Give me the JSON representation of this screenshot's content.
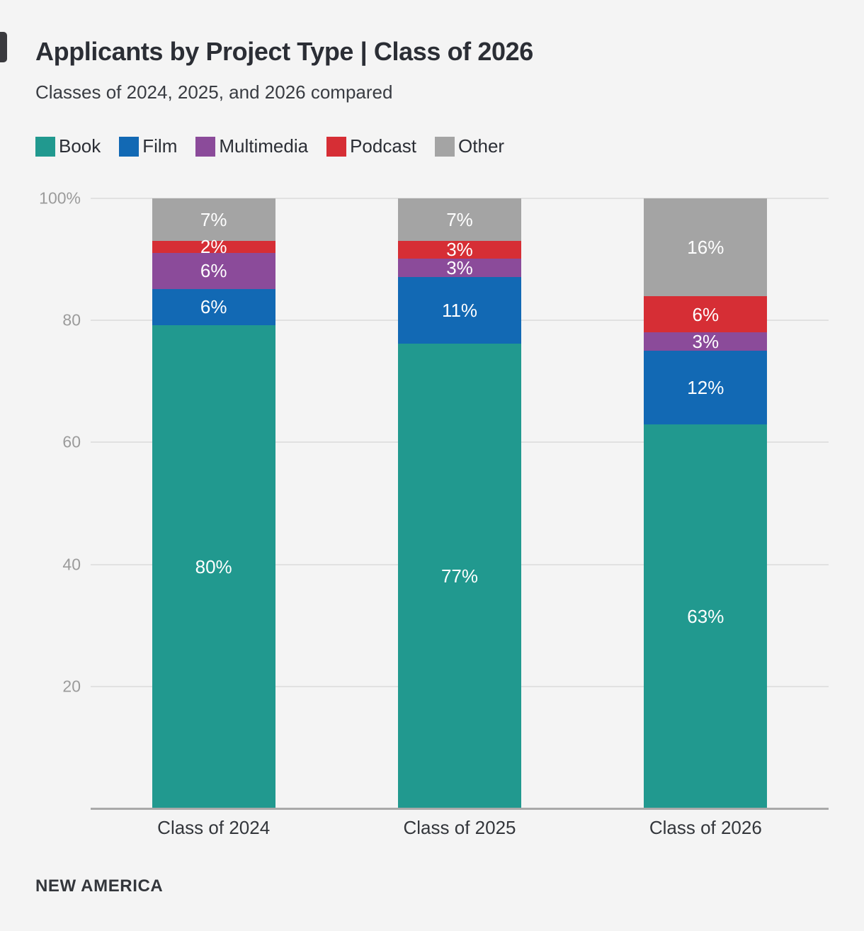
{
  "header": {
    "title": "Applicants by Project Type | Class of 2026",
    "subtitle": "Classes of 2024, 2025, and 2026 compared"
  },
  "footer": {
    "brand": "NEW AMERICA"
  },
  "colors": {
    "background": "#f4f4f4",
    "book": "#21998f",
    "film": "#1269b4",
    "multimedia": "#8b4b9a",
    "podcast": "#d62e35",
    "other": "#a4a4a4",
    "gridline": "#e1e1e1",
    "axis_line": "#a9a9a9",
    "tick_label": "#9b9b9b",
    "segment_label_text": "#ffffff"
  },
  "chart_data": {
    "type": "bar",
    "stacked": true,
    "unit": "%",
    "title": "Applicants by Project Type | Class of 2026",
    "subtitle": "Classes of 2024, 2025, and 2026 compared",
    "categories": [
      "Class of 2024",
      "Class of 2025",
      "Class of 2026"
    ],
    "series": [
      {
        "name": "Book",
        "color_key": "book",
        "values": [
          80,
          77,
          63
        ]
      },
      {
        "name": "Film",
        "color_key": "film",
        "values": [
          6,
          11,
          12
        ]
      },
      {
        "name": "Multimedia",
        "color_key": "multimedia",
        "values": [
          6,
          3,
          3
        ]
      },
      {
        "name": "Podcast",
        "color_key": "podcast",
        "values": [
          2,
          3,
          6
        ]
      },
      {
        "name": "Other",
        "color_key": "other",
        "values": [
          7,
          7,
          16
        ]
      }
    ],
    "data_labels": {
      "Class of 2024": {
        "Book": "80%",
        "Film": "6%",
        "Multimedia": "6%",
        "Podcast": "2%",
        "Other": "7%"
      },
      "Class of 2025": {
        "Book": "77%",
        "Film": "11%",
        "Multimedia": "3%",
        "Podcast": "3%",
        "Other": "7%"
      },
      "Class of 2026": {
        "Book": "63%",
        "Film": "12%",
        "Multimedia": "3%",
        "Podcast": "6%",
        "Other": "16%"
      }
    },
    "y_ticks": [
      {
        "value": 100,
        "label": "100%"
      },
      {
        "value": 80,
        "label": "80"
      },
      {
        "value": 60,
        "label": "60"
      },
      {
        "value": 40,
        "label": "40"
      },
      {
        "value": 20,
        "label": "20"
      }
    ],
    "ylim": [
      0,
      100
    ],
    "grid": "horizontal",
    "legend_position": "top"
  }
}
